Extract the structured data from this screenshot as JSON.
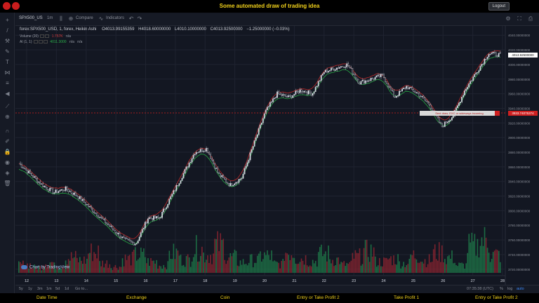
{
  "header": {
    "title": "Some automated draw of trading idea",
    "logout_label": "Logout"
  },
  "toolbar": {
    "symbol": "SPX500_US",
    "interval": "1m",
    "compare_label": "Compare",
    "indicators_label": "Indicators"
  },
  "legend": {
    "symbol_line": "forex:SPX500_USD, 1, forex, Heikin Ashi",
    "open": "O4013.99155359",
    "high": "H4018.60000000",
    "low": "L4010.10000000",
    "close": "C4013.92500000",
    "change": "−1.25000000 (−0.03%)",
    "volume_label": "Volume (20)",
    "volume_value": "1.757K",
    "volume_na": "n/a",
    "al_label": "Al (1, 1)",
    "al_value": "4011.3000",
    "al_na1": "n/a",
    "al_na2": "n/a"
  },
  "price_axis": {
    "labels": [
      "4040.00000000",
      "4020.00000000",
      "4000.00000000",
      "3980.00000000",
      "3960.00000000",
      "3940.00000000",
      "3920.00000000",
      "3900.00000000",
      "3880.00000000",
      "3860.00000000",
      "3840.00000000",
      "3820.00000000",
      "3800.00000000",
      "3780.00000000",
      "3760.00000000",
      "3740.00000000",
      "3720.00000000"
    ],
    "current_price": "4013.92500000",
    "signal_price": "3933.74075374"
  },
  "time_axis": {
    "labels": [
      "12",
      "13",
      "14",
      "15",
      "16",
      "17",
      "18",
      "19",
      "20",
      "21",
      "22",
      "23",
      "24",
      "25",
      "26",
      "27",
      "28"
    ]
  },
  "signal": {
    "text": "Sent draw, EXC or wideways incoming",
    "color": "#cf2020"
  },
  "watermark": "Chart by TradingView",
  "bottombar": {
    "ranges": [
      "5y",
      "1y",
      "3m",
      "1m",
      "5d",
      "1d",
      "Go to..."
    ],
    "time": "07:35:38 (UTC)",
    "pct": "%",
    "log": "log",
    "auto": "auto"
  },
  "footer": {
    "items": [
      "Date Time",
      "Exchange",
      "Coin",
      "Entry or Take Profit 2",
      "Take Profit 1",
      "Entry or Take Profit 2"
    ]
  },
  "chart_data": {
    "type": "candlestick",
    "style": "Heikin Ashi",
    "x_labels": [
      "12",
      "13",
      "14",
      "15",
      "16",
      "17",
      "18",
      "19",
      "20",
      "21",
      "22",
      "23",
      "24",
      "25",
      "26",
      "27",
      "28"
    ],
    "y_range": [
      3715,
      4045
    ],
    "close_path": [
      3865,
      3850,
      3835,
      3825,
      3830,
      3820,
      3805,
      3790,
      3775,
      3760,
      3755,
      3790,
      3790,
      3820,
      3850,
      3880,
      3885,
      3850,
      3835,
      3845,
      3890,
      3935,
      3960,
      3955,
      3965,
      3960,
      3990,
      3995,
      4000,
      3975,
      3980,
      3985,
      3955,
      3970,
      3960,
      3945,
      3915,
      3930,
      3965,
      3990,
      4015,
      4013
    ],
    "volume": [
      12,
      8,
      15,
      10,
      22,
      18,
      30,
      14,
      9,
      20,
      25,
      16,
      11,
      28,
      19,
      35,
      26,
      40,
      22,
      15,
      18,
      24,
      13,
      30,
      21,
      17,
      27,
      19,
      12,
      23,
      31,
      16,
      20,
      14,
      25,
      18,
      29,
      22,
      11,
      38,
      47,
      26
    ],
    "colors": {
      "up": "#b7bcc6",
      "down": "#b7bcc6",
      "vol_up": "#1f7a49",
      "vol_down": "#8c2430",
      "green_line": "#27a844",
      "red_line": "#c02a2a"
    },
    "signal_line": 3933.74
  }
}
